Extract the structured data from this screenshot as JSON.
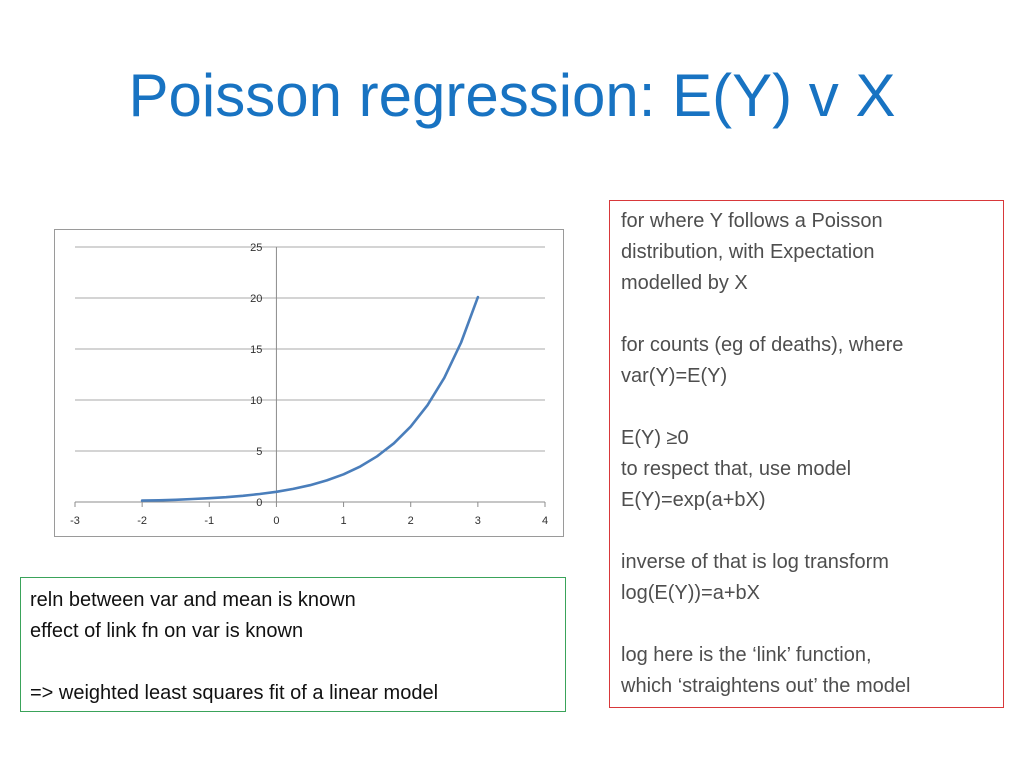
{
  "slide": {
    "title": "Poisson regression: E(Y) v X"
  },
  "chart_data": {
    "type": "line",
    "x": [
      -2,
      -1.75,
      -1.5,
      -1.25,
      -1,
      -0.75,
      -0.5,
      -0.25,
      0,
      0.25,
      0.5,
      0.75,
      1,
      1.25,
      1.5,
      1.75,
      2,
      2.25,
      2.5,
      2.75,
      3
    ],
    "series": [
      {
        "values": [
          0.14,
          0.17,
          0.22,
          0.29,
          0.37,
          0.47,
          0.61,
          0.78,
          1.0,
          1.28,
          1.65,
          2.12,
          2.72,
          3.49,
          4.48,
          5.75,
          7.39,
          9.49,
          12.18,
          15.64,
          20.09
        ]
      }
    ],
    "xlim": [
      -3,
      4
    ],
    "ylim": [
      0,
      25
    ],
    "x_ticks": [
      "-3",
      "-2",
      "-1",
      "0",
      "1",
      "2",
      "3",
      "4"
    ],
    "y_ticks": [
      "0",
      "5",
      "10",
      "15",
      "20",
      "25"
    ],
    "title": "",
    "xlabel": "",
    "ylabel": "",
    "grid": "horizontal",
    "line_color": "#4a7ebb"
  },
  "notes_left": {
    "lines": [
      "reln between var and mean is known",
      "effect of link fn on var is known",
      "",
      "=> weighted least squares fit of a linear model"
    ],
    "border_color": "#3aa35a"
  },
  "notes_right": {
    "lines": [
      "for where Y follows a Poisson",
      "distribution, with Expectation",
      "modelled by X",
      "",
      "for counts (eg of deaths), where",
      "var(Y)=E(Y)",
      "",
      "E(Y) ≥0",
      "to respect that, use model",
      "E(Y)=exp(a+bX)",
      "",
      "inverse of that is log transform",
      "log(E(Y))=a+bX",
      "",
      "log here is the ‘link’ function,",
      "which ‘straightens out’ the model"
    ],
    "border_color": "#d8383a"
  }
}
